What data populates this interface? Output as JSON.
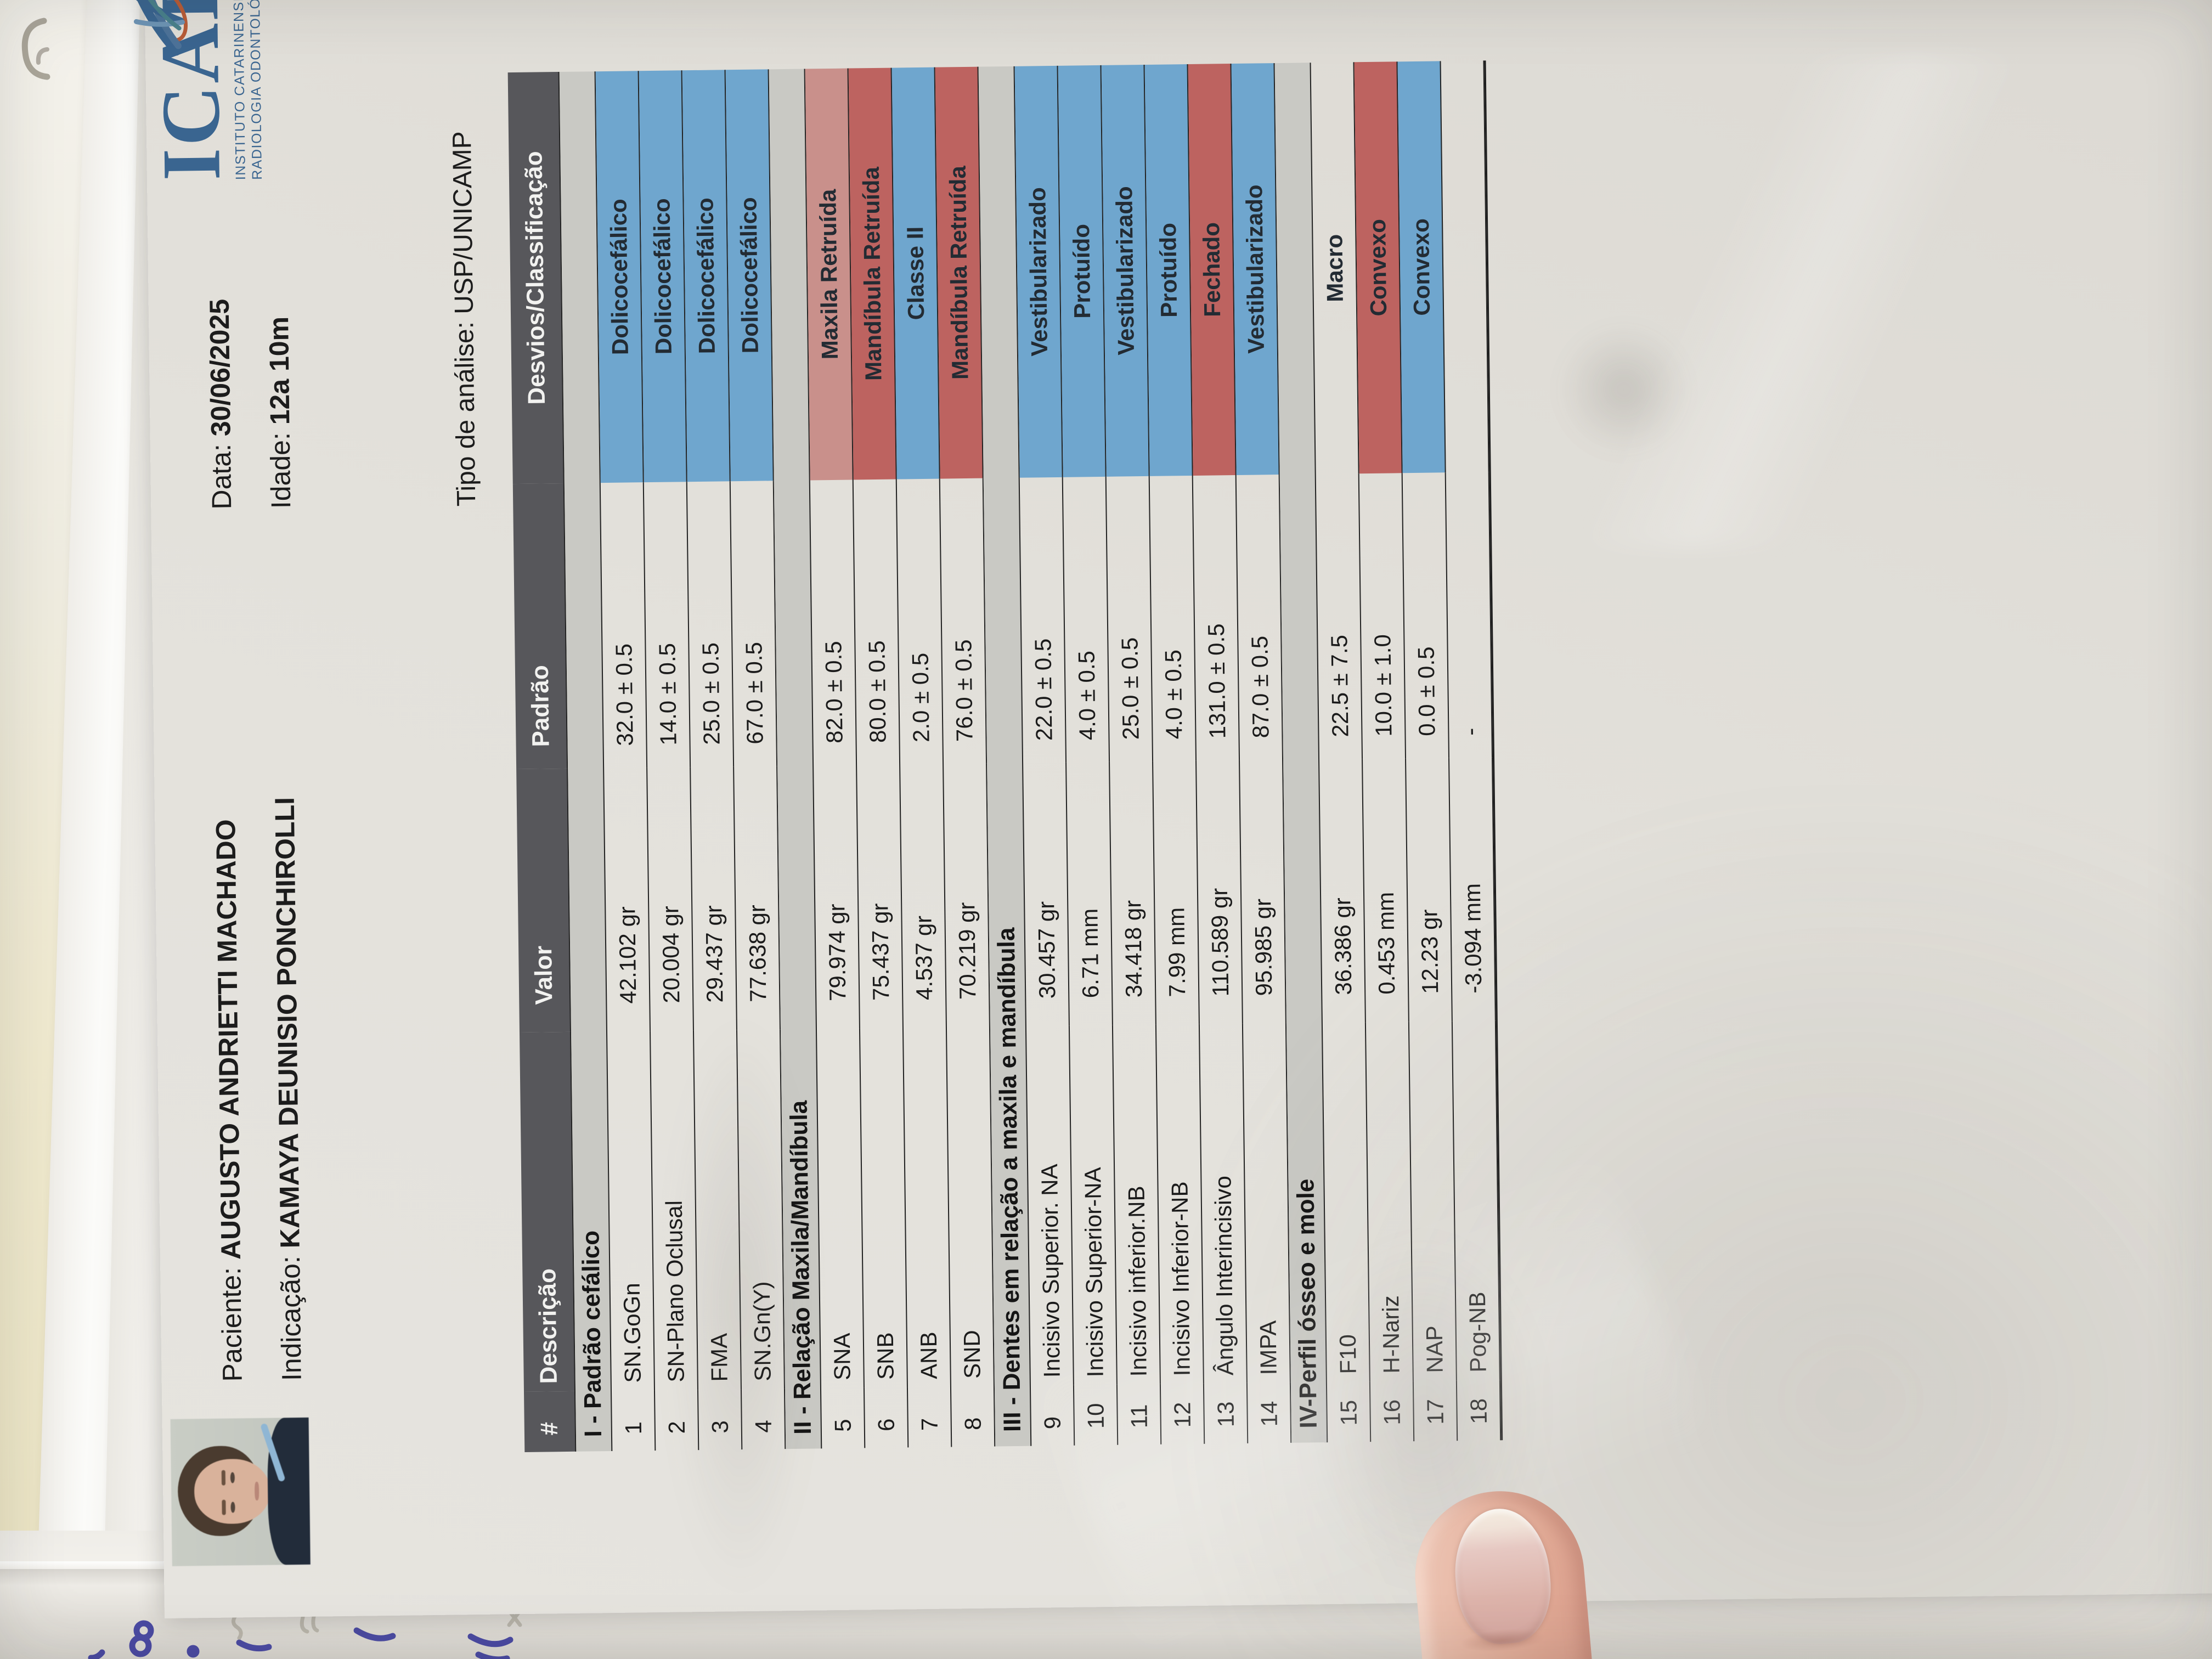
{
  "document": {
    "logo": {
      "name": "ICARO",
      "tagline_line1": "INSTITUTO CATARINENSE DE",
      "tagline_line2": "RADIOLOGIA ODONTOLÓGICA"
    },
    "header": {
      "patient_label": "Paciente:",
      "patient_name": "AUGUSTO ANDRIETTI MACHADO",
      "date_label": "Data:",
      "date_value": "30/06/2025",
      "indication_label": "Indicação:",
      "indication_value": "KAMAYA DEUNISIO PONCHIROLLI",
      "age_label": "Idade:",
      "age_value": "12a 10m",
      "analysis_label": "Tipo de análise:",
      "analysis_value": "USP/UNICAMP"
    },
    "table": {
      "columns": [
        "#",
        "Descrição",
        "Valor",
        "Padrão",
        "Desvios/Classificação"
      ],
      "tone_colors": {
        "blue": "#6FA6CE",
        "red": "#BD6360",
        "salmon": "#C9908B",
        "plain": "transparent",
        "none": "transparent"
      },
      "sections": [
        {
          "title": "I - Padrão cefálico",
          "rows": [
            {
              "num": "1",
              "desc": "SN.GoGn",
              "valor": "42.102 gr",
              "padrao": "32.0 ± 0.5",
              "desvio": "Dolicocefálico",
              "tone": "blue"
            },
            {
              "num": "2",
              "desc": "SN-Plano Oclusal",
              "valor": "20.004 gr",
              "padrao": "14.0 ± 0.5",
              "desvio": "Dolicocefálico",
              "tone": "blue"
            },
            {
              "num": "3",
              "desc": "FMA",
              "valor": "29.437 gr",
              "padrao": "25.0 ± 0.5",
              "desvio": "Dolicocefálico",
              "tone": "blue"
            },
            {
              "num": "4",
              "desc": "SN.Gn(Y)",
              "valor": "77.638 gr",
              "padrao": "67.0 ± 0.5",
              "desvio": "Dolicocefálico",
              "tone": "blue"
            }
          ]
        },
        {
          "title": "II - Relação Maxila/Mandíbula",
          "rows": [
            {
              "num": "5",
              "desc": "SNA",
              "valor": "79.974 gr",
              "padrao": "82.0 ± 0.5",
              "desvio": "Maxila Retruída",
              "tone": "salmon"
            },
            {
              "num": "6",
              "desc": "SNB",
              "valor": "75.437 gr",
              "padrao": "80.0 ± 0.5",
              "desvio": "Mandíbula Retruída",
              "tone": "red"
            },
            {
              "num": "7",
              "desc": "ANB",
              "valor": "4.537 gr",
              "padrao": "2.0 ± 0.5",
              "desvio": "Classe II",
              "tone": "blue"
            },
            {
              "num": "8",
              "desc": "SND",
              "valor": "70.219 gr",
              "padrao": "76.0 ± 0.5",
              "desvio": "Mandíbula Retruída",
              "tone": "red"
            }
          ]
        },
        {
          "title": "III - Dentes em relação a maxila e mandíbula",
          "rows": [
            {
              "num": "9",
              "desc": "Incisivo Superior. NA",
              "valor": "30.457 gr",
              "padrao": "22.0 ± 0.5",
              "desvio": "Vestibularizado",
              "tone": "blue"
            },
            {
              "num": "10",
              "desc": "Incisivo Superior-NA",
              "valor": "6.71 mm",
              "padrao": "4.0 ± 0.5",
              "desvio": "Protuído",
              "tone": "blue"
            },
            {
              "num": "11",
              "desc": "Incisivo inferior.NB",
              "valor": "34.418 gr",
              "padrao": "25.0 ± 0.5",
              "desvio": "Vestibularizado",
              "tone": "blue"
            },
            {
              "num": "12",
              "desc": "Incisivo Inferior-NB",
              "valor": "7.99 mm",
              "padrao": "4.0 ± 0.5",
              "desvio": "Protuído",
              "tone": "blue"
            },
            {
              "num": "13",
              "desc": "Ângulo Interincisivo",
              "valor": "110.589 gr",
              "padrao": "131.0 ± 0.5",
              "desvio": "Fechado",
              "tone": "red"
            },
            {
              "num": "14",
              "desc": "IMPA",
              "valor": "95.985 gr",
              "padrao": "87.0 ± 0.5",
              "desvio": "Vestibularizado",
              "tone": "blue"
            }
          ]
        },
        {
          "title": "IV-Perfil ósseo e mole",
          "rows": [
            {
              "num": "15",
              "desc": "F10",
              "valor": "36.386 gr",
              "padrao": "22.5 ± 7.5",
              "desvio": "Macro",
              "tone": "plain"
            },
            {
              "num": "16",
              "desc": "H-Nariz",
              "valor": "0.453 mm",
              "padrao": "10.0 ± 1.0",
              "desvio": "Convexo",
              "tone": "red"
            },
            {
              "num": "17",
              "desc": "NAP",
              "valor": "12.23 gr",
              "padrao": "0.0 ± 0.5",
              "desvio": "Convexo",
              "tone": "blue"
            },
            {
              "num": "18",
              "desc": "Pog-NB",
              "valor": "-3.094 mm",
              "padrao": "-",
              "desvio": "",
              "tone": "none"
            }
          ]
        }
      ]
    },
    "colors": {
      "header_bar": "#57575B",
      "section_bar": "#C9C9C4",
      "page": "#E3E1DB",
      "logo_blue": "#3A6590",
      "logo_orange": "#B85C38"
    }
  }
}
